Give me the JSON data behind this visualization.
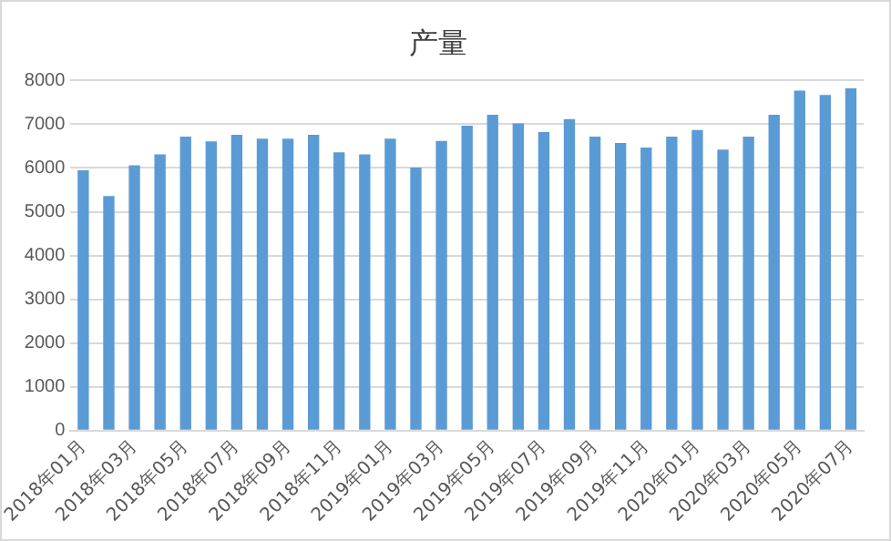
{
  "chart_data": {
    "type": "bar",
    "title": "产量",
    "categories": [
      "2018年01月",
      null,
      "2018年03月",
      null,
      "2018年05月",
      null,
      "2018年07月",
      null,
      "2018年09月",
      null,
      "2018年11月",
      null,
      "2019年01月",
      null,
      "2019年03月",
      null,
      "2019年05月",
      null,
      "2019年07月",
      null,
      "2019年09月",
      null,
      "2019年11月",
      null,
      "2020年01月",
      null,
      "2020年03月",
      null,
      "2020年05月",
      null,
      "2020年07月"
    ],
    "values": [
      5950,
      5360,
      6060,
      6310,
      6720,
      6610,
      6760,
      6670,
      6670,
      6760,
      6360,
      6310,
      6670,
      6010,
      6620,
      6970,
      7220,
      7020,
      6820,
      7120,
      6720,
      6570,
      6470,
      6720,
      6870,
      6420,
      6720,
      7220,
      7770,
      7670,
      7820
    ],
    "color": "#5b9bd5",
    "ylim": [
      0,
      8000
    ],
    "yticks": [
      0,
      1000,
      2000,
      3000,
      4000,
      5000,
      6000,
      7000,
      8000
    ],
    "grid": "y"
  }
}
